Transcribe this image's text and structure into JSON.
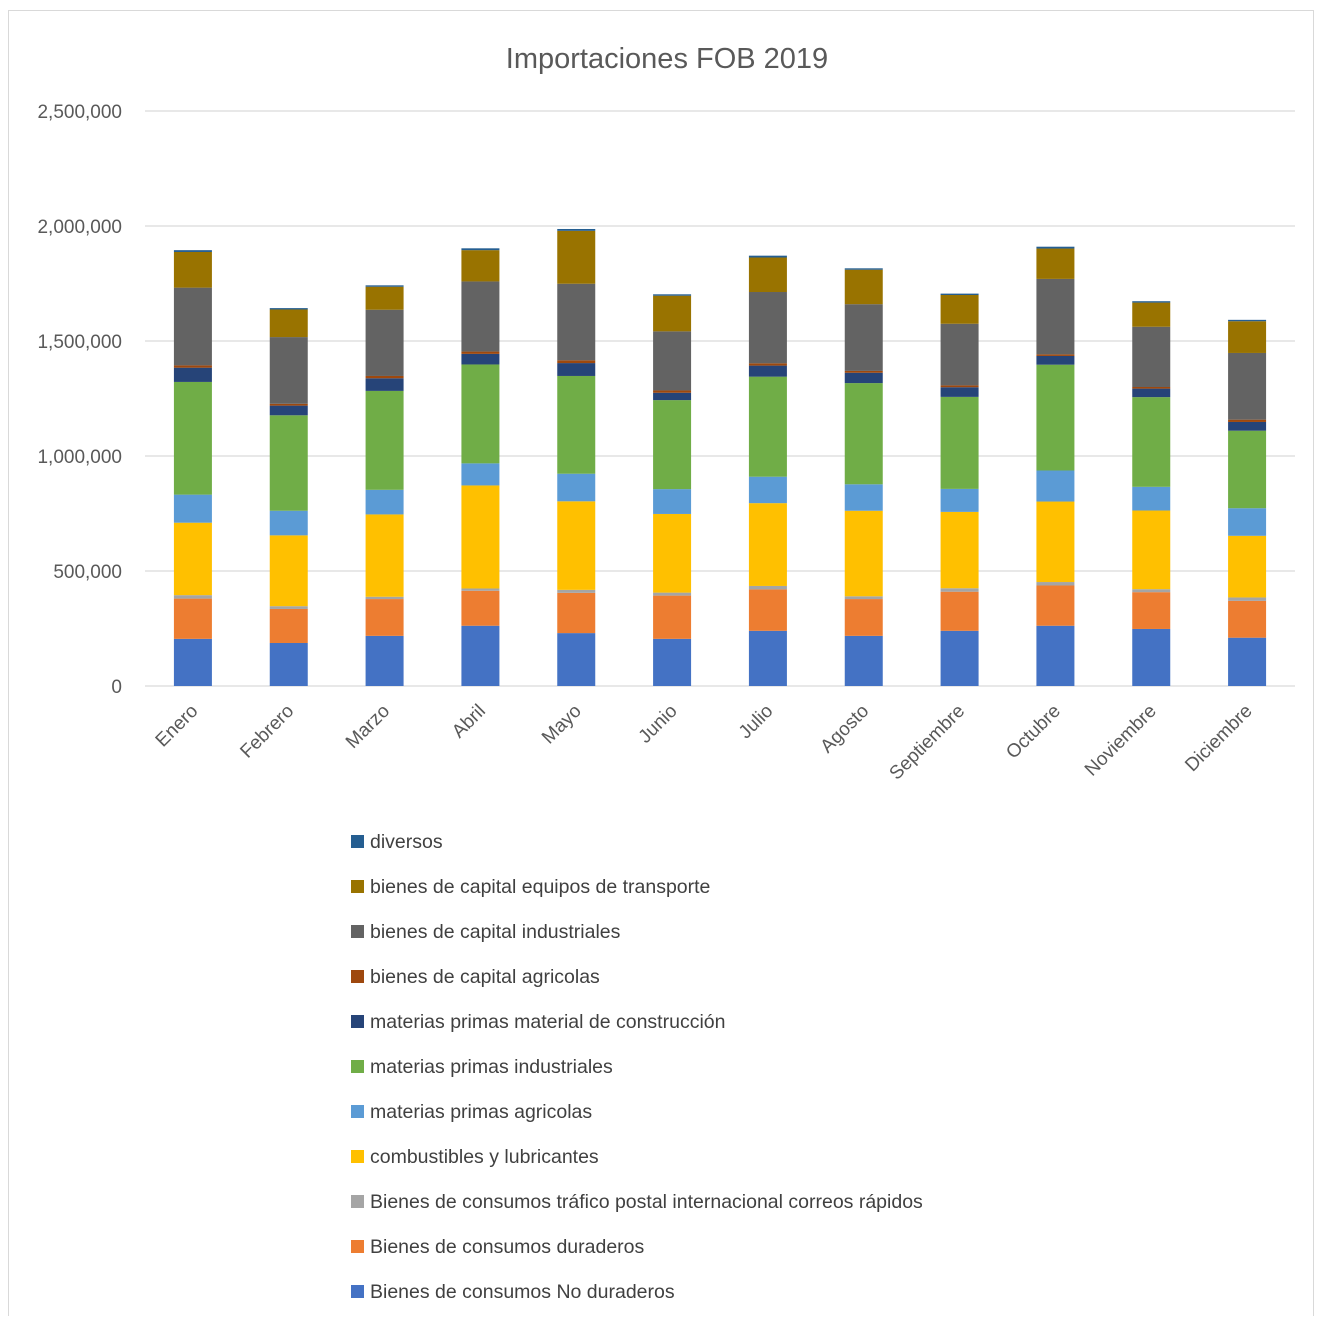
{
  "chart_data": {
    "type": "bar",
    "stacked": true,
    "title": "Importaciones FOB 2019",
    "xlabel": "",
    "ylabel": "",
    "ylim": [
      0,
      2500000
    ],
    "yticks": [
      0,
      500000,
      1000000,
      1500000,
      2000000,
      2500000
    ],
    "ytick_labels": [
      "0",
      "500,000",
      "1,000,000",
      "1,500,000",
      "2,000,000",
      "2,500,000"
    ],
    "grid": true,
    "legend_position": "bottom",
    "categories": [
      "Enero",
      "Febrero",
      "Marzo",
      "Abril",
      "Mayo",
      "Junio",
      "Julio",
      "Agosto",
      "Septiembre",
      "Octubre",
      "Noviembre",
      "Diciembre"
    ],
    "series": [
      {
        "name": "Bienes de consumos No duraderos",
        "color": "#4472C4",
        "values": [
          205000,
          187000,
          218000,
          262000,
          230000,
          205000,
          240000,
          218000,
          240000,
          262000,
          248000,
          210000
        ]
      },
      {
        "name": "Bienes de consumos duraderos",
        "color": "#ED7D31",
        "values": [
          175000,
          148000,
          160000,
          152000,
          175000,
          188000,
          180000,
          160000,
          170000,
          175000,
          160000,
          160000
        ]
      },
      {
        "name": "Bienes de consumos tráfico postal internacional correos rápidos",
        "color": "#A5A5A5",
        "values": [
          15000,
          12000,
          10000,
          10000,
          13000,
          13000,
          15000,
          12000,
          15000,
          15000,
          13000,
          15000
        ]
      },
      {
        "name": "combustibles y lubricantes",
        "color": "#FFC000",
        "values": [
          315000,
          308000,
          358000,
          448000,
          385000,
          342000,
          360000,
          372000,
          332000,
          350000,
          342000,
          268000
        ]
      },
      {
        "name": "materias primas agricolas",
        "color": "#5B9BD5",
        "values": [
          122000,
          107000,
          107000,
          96000,
          120000,
          108000,
          115000,
          115000,
          100000,
          135000,
          103000,
          120000
        ]
      },
      {
        "name": "materias primas industriales",
        "color": "#70AD47",
        "values": [
          490000,
          415000,
          430000,
          430000,
          425000,
          387000,
          435000,
          440000,
          400000,
          460000,
          390000,
          337000
        ]
      },
      {
        "name": "materias primas material de construcción",
        "color": "#264478",
        "values": [
          62000,
          42000,
          55000,
          46000,
          56000,
          32000,
          48000,
          45000,
          42000,
          38000,
          37000,
          38000
        ]
      },
      {
        "name": "bienes de capital agricolas",
        "color": "#9E480E",
        "values": [
          10000,
          8000,
          10000,
          10000,
          12000,
          10000,
          10000,
          8000,
          8000,
          7000,
          7000,
          10000
        ]
      },
      {
        "name": "bienes de capital industriales",
        "color": "#636363",
        "values": [
          338000,
          290000,
          288000,
          305000,
          333000,
          257000,
          310000,
          290000,
          268000,
          328000,
          262000,
          290000
        ]
      },
      {
        "name": "bienes de capital equipos de transporte",
        "color": "#997300",
        "values": [
          155000,
          120000,
          100000,
          136000,
          230000,
          155000,
          150000,
          150000,
          125000,
          132000,
          105000,
          138000
        ]
      },
      {
        "name": "diversos",
        "color": "#255E91",
        "values": [
          8000,
          6000,
          6000,
          8000,
          8000,
          6000,
          8000,
          6000,
          6000,
          8000,
          6000,
          6000
        ]
      }
    ]
  }
}
